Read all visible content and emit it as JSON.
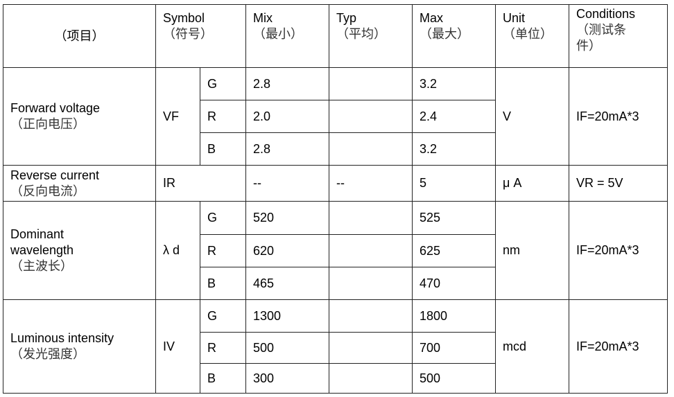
{
  "header": {
    "item": "（项目）",
    "symbol": [
      "Symbol",
      "（符号）"
    ],
    "min": [
      "Mix",
      "（最小）"
    ],
    "typ": [
      "Typ",
      "（平均）"
    ],
    "max": [
      "Max",
      "（最大）"
    ],
    "unit": [
      "Unit",
      "（单位）"
    ],
    "conditions": [
      "Conditions",
      "（测试条",
      "件）"
    ]
  },
  "rows": {
    "vf": {
      "name": "Forward voltage",
      "name_cn": "（正向电压）",
      "symbol": "VF",
      "unit": "V",
      "conditions": "IF=20mA*3",
      "sub": [
        {
          "color": "G",
          "min": "2.8",
          "typ": "",
          "max": "3.2"
        },
        {
          "color": "R",
          "min": "2.0",
          "typ": "",
          "max": "2.4"
        },
        {
          "color": "B",
          "min": "2.8",
          "typ": "",
          "max": "3.2"
        }
      ]
    },
    "ir": {
      "name": "Reverse current",
      "name_cn": "（反向电流）",
      "symbol": "IR",
      "min": "--",
      "typ": "--",
      "max": "5",
      "unit": "μ A",
      "conditions": "VR = 5V"
    },
    "ld": {
      "name": [
        "Dominant",
        "wavelength"
      ],
      "name_cn": "（主波长）",
      "symbol": "λ d",
      "unit": "nm",
      "conditions": "IF=20mA*3",
      "sub": [
        {
          "color": "G",
          "min": "520",
          "typ": "",
          "max": "525"
        },
        {
          "color": "R",
          "min": "620",
          "typ": "",
          "max": "625"
        },
        {
          "color": "B",
          "min": "465",
          "typ": "",
          "max": "470"
        }
      ]
    },
    "iv": {
      "name": "Luminous intensity",
      "name_cn": "（发光强度）",
      "symbol": "IV",
      "unit": "mcd",
      "conditions": "IF=20mA*3",
      "sub": [
        {
          "color": "G",
          "min": "1300",
          "typ": "",
          "max": "1800"
        },
        {
          "color": "R",
          "min": "500",
          "typ": "",
          "max": "700"
        },
        {
          "color": "B",
          "min": "300",
          "typ": "",
          "max": "500"
        }
      ]
    }
  }
}
